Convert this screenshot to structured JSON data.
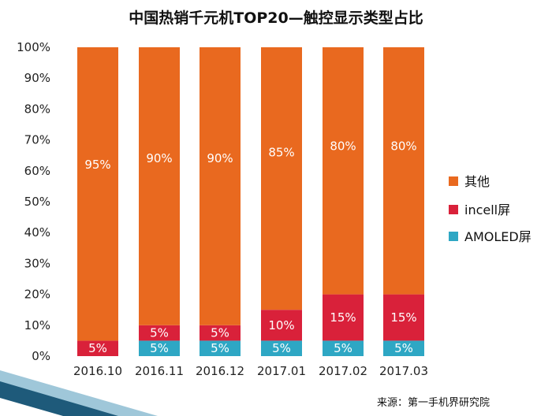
{
  "chart_data": {
    "type": "bar",
    "stacked": true,
    "title": "中国热销千元机TOP20—触控显示类型占比",
    "categories": [
      "2016.10",
      "2016.11",
      "2016.12",
      "2017.01",
      "2017.02",
      "2017.03"
    ],
    "series": [
      {
        "name": "AMOLED屏",
        "values": [
          0,
          5,
          5,
          5,
          5,
          5
        ],
        "labels": [
          "",
          "5%",
          "5%",
          "5%",
          "5%",
          "5%"
        ],
        "color": "#2ea7c4"
      },
      {
        "name": "incell屏",
        "values": [
          5,
          5,
          5,
          10,
          15,
          15
        ],
        "labels": [
          "5%",
          "5%",
          "5%",
          "10%",
          "15%",
          "15%"
        ],
        "color": "#d9213a"
      },
      {
        "name": "其他",
        "values": [
          95,
          90,
          90,
          85,
          80,
          80
        ],
        "labels": [
          "95%",
          "90%",
          "90%",
          "85%",
          "80%",
          "80%"
        ],
        "color": "#e9691f"
      }
    ],
    "legend_order": [
      "其他",
      "incell屏",
      "AMOLED屏"
    ],
    "ylim": [
      0,
      100
    ],
    "yticks": [
      "0%",
      "10%",
      "20%",
      "30%",
      "40%",
      "50%",
      "60%",
      "70%",
      "80%",
      "90%",
      "100%"
    ],
    "legend_position": "right",
    "grid": false
  },
  "source": "来源：第一手机界研究院",
  "colors": {
    "decor_dark": "#1e5a7a",
    "decor_light": "#9fc7d9"
  }
}
